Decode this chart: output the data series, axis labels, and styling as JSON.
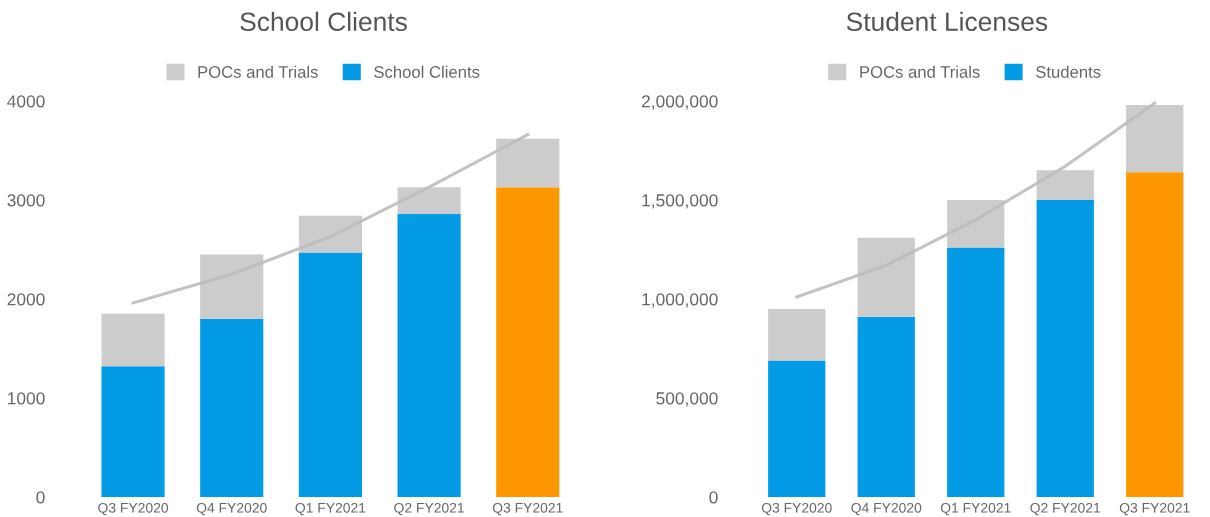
{
  "chart_data": [
    {
      "type": "bar",
      "title": "School Clients",
      "stacked": true,
      "legend": "top",
      "grid": false,
      "categories": [
        "Q3 FY2020",
        "Q4 FY2020",
        "Q1 FY2021",
        "Q2 FY2021",
        "Q3 FY2021"
      ],
      "ylim": [
        0,
        4000
      ],
      "yticks": [
        0,
        1000,
        2000,
        3000,
        4000
      ],
      "series": [
        {
          "name": "School Clients",
          "color": "#039be5",
          "colors": [
            "#039be5",
            "#039be5",
            "#039be5",
            "#039be5",
            "#ff9800"
          ],
          "values": [
            1320,
            1800,
            2470,
            2860,
            3130
          ]
        },
        {
          "name": "POCs and Trials",
          "color": "#cccccc",
          "values": [
            530,
            650,
            370,
            270,
            490
          ]
        },
        {
          "type": "line",
          "color": "#bdbdbd",
          "values": [
            1960,
            2250,
            2630,
            3130,
            3660
          ]
        }
      ]
    },
    {
      "type": "bar",
      "title": "Student Licenses",
      "stacked": true,
      "legend": "top",
      "grid": false,
      "categories": [
        "Q3 FY2020",
        "Q4 FY2020",
        "Q1 FY2021",
        "Q2 FY2021",
        "Q3 FY2021"
      ],
      "ylim": [
        0,
        2000000
      ],
      "yticks": [
        0,
        {
          "value": 500000,
          "label": "500,000"
        },
        {
          "value": 1000000,
          "label": "1,000,000"
        },
        {
          "value": 1500000,
          "label": "1,500,000"
        },
        {
          "value": 2000000,
          "label": "2,000,000"
        }
      ],
      "series": [
        {
          "name": "Students",
          "color": "#039be5",
          "colors": [
            "#039be5",
            "#039be5",
            "#039be5",
            "#039be5",
            "#ff9800"
          ],
          "values": [
            690000,
            910000,
            1260000,
            1500000,
            1640000
          ]
        },
        {
          "name": "POCs and Trials",
          "color": "#cccccc",
          "values": [
            260000,
            400000,
            240000,
            150000,
            340000
          ]
        },
        {
          "type": "line",
          "color": "#bdbdbd",
          "values": [
            1010000,
            1170000,
            1400000,
            1670000,
            1990000
          ]
        }
      ]
    }
  ]
}
